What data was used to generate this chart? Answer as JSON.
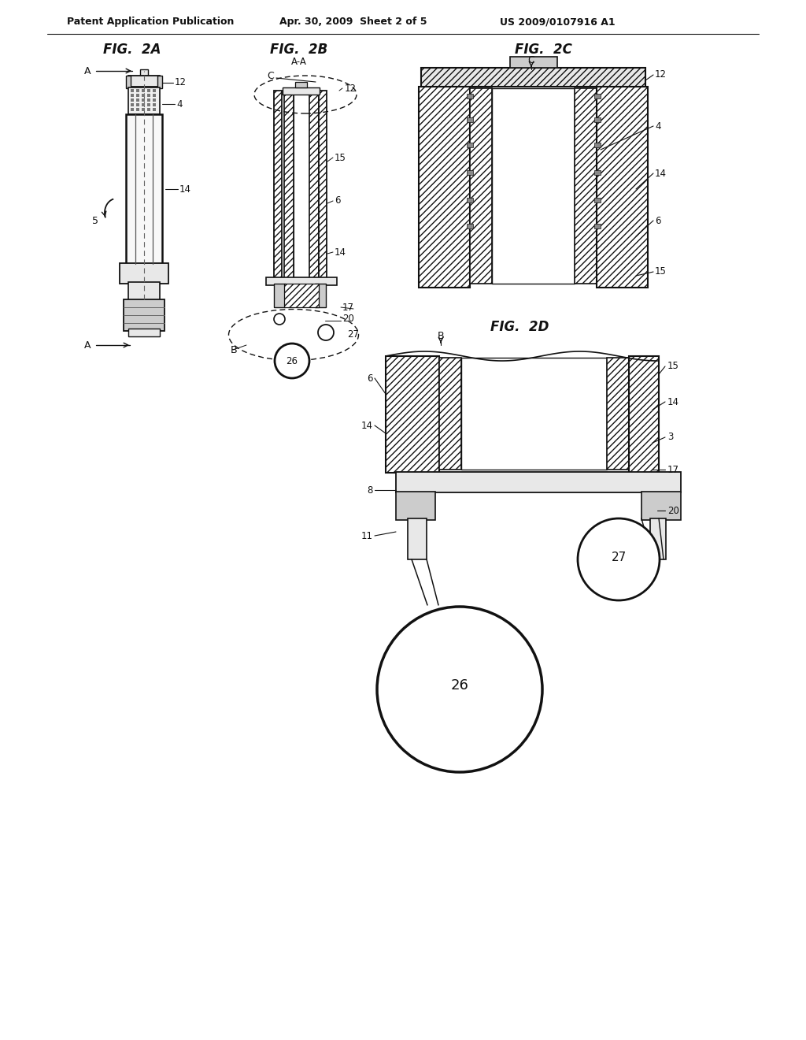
{
  "bg_color": "#ffffff",
  "header_left": "Patent Application Publication",
  "header_mid": "Apr. 30, 2009  Sheet 2 of 5",
  "header_right": "US 2009/0107916 A1",
  "fig2a_label": "FIG.  2A",
  "fig2b_label": "FIG.  2B",
  "fig2b_sub": "A-A",
  "fig2c_label": "FIG.  2C",
  "fig2d_label": "FIG.  2D",
  "line_color": "#111111",
  "text_color": "#111111",
  "gray_light": "#e8e8e8",
  "gray_mid": "#cccccc",
  "gray_dark": "#aaaaaa"
}
